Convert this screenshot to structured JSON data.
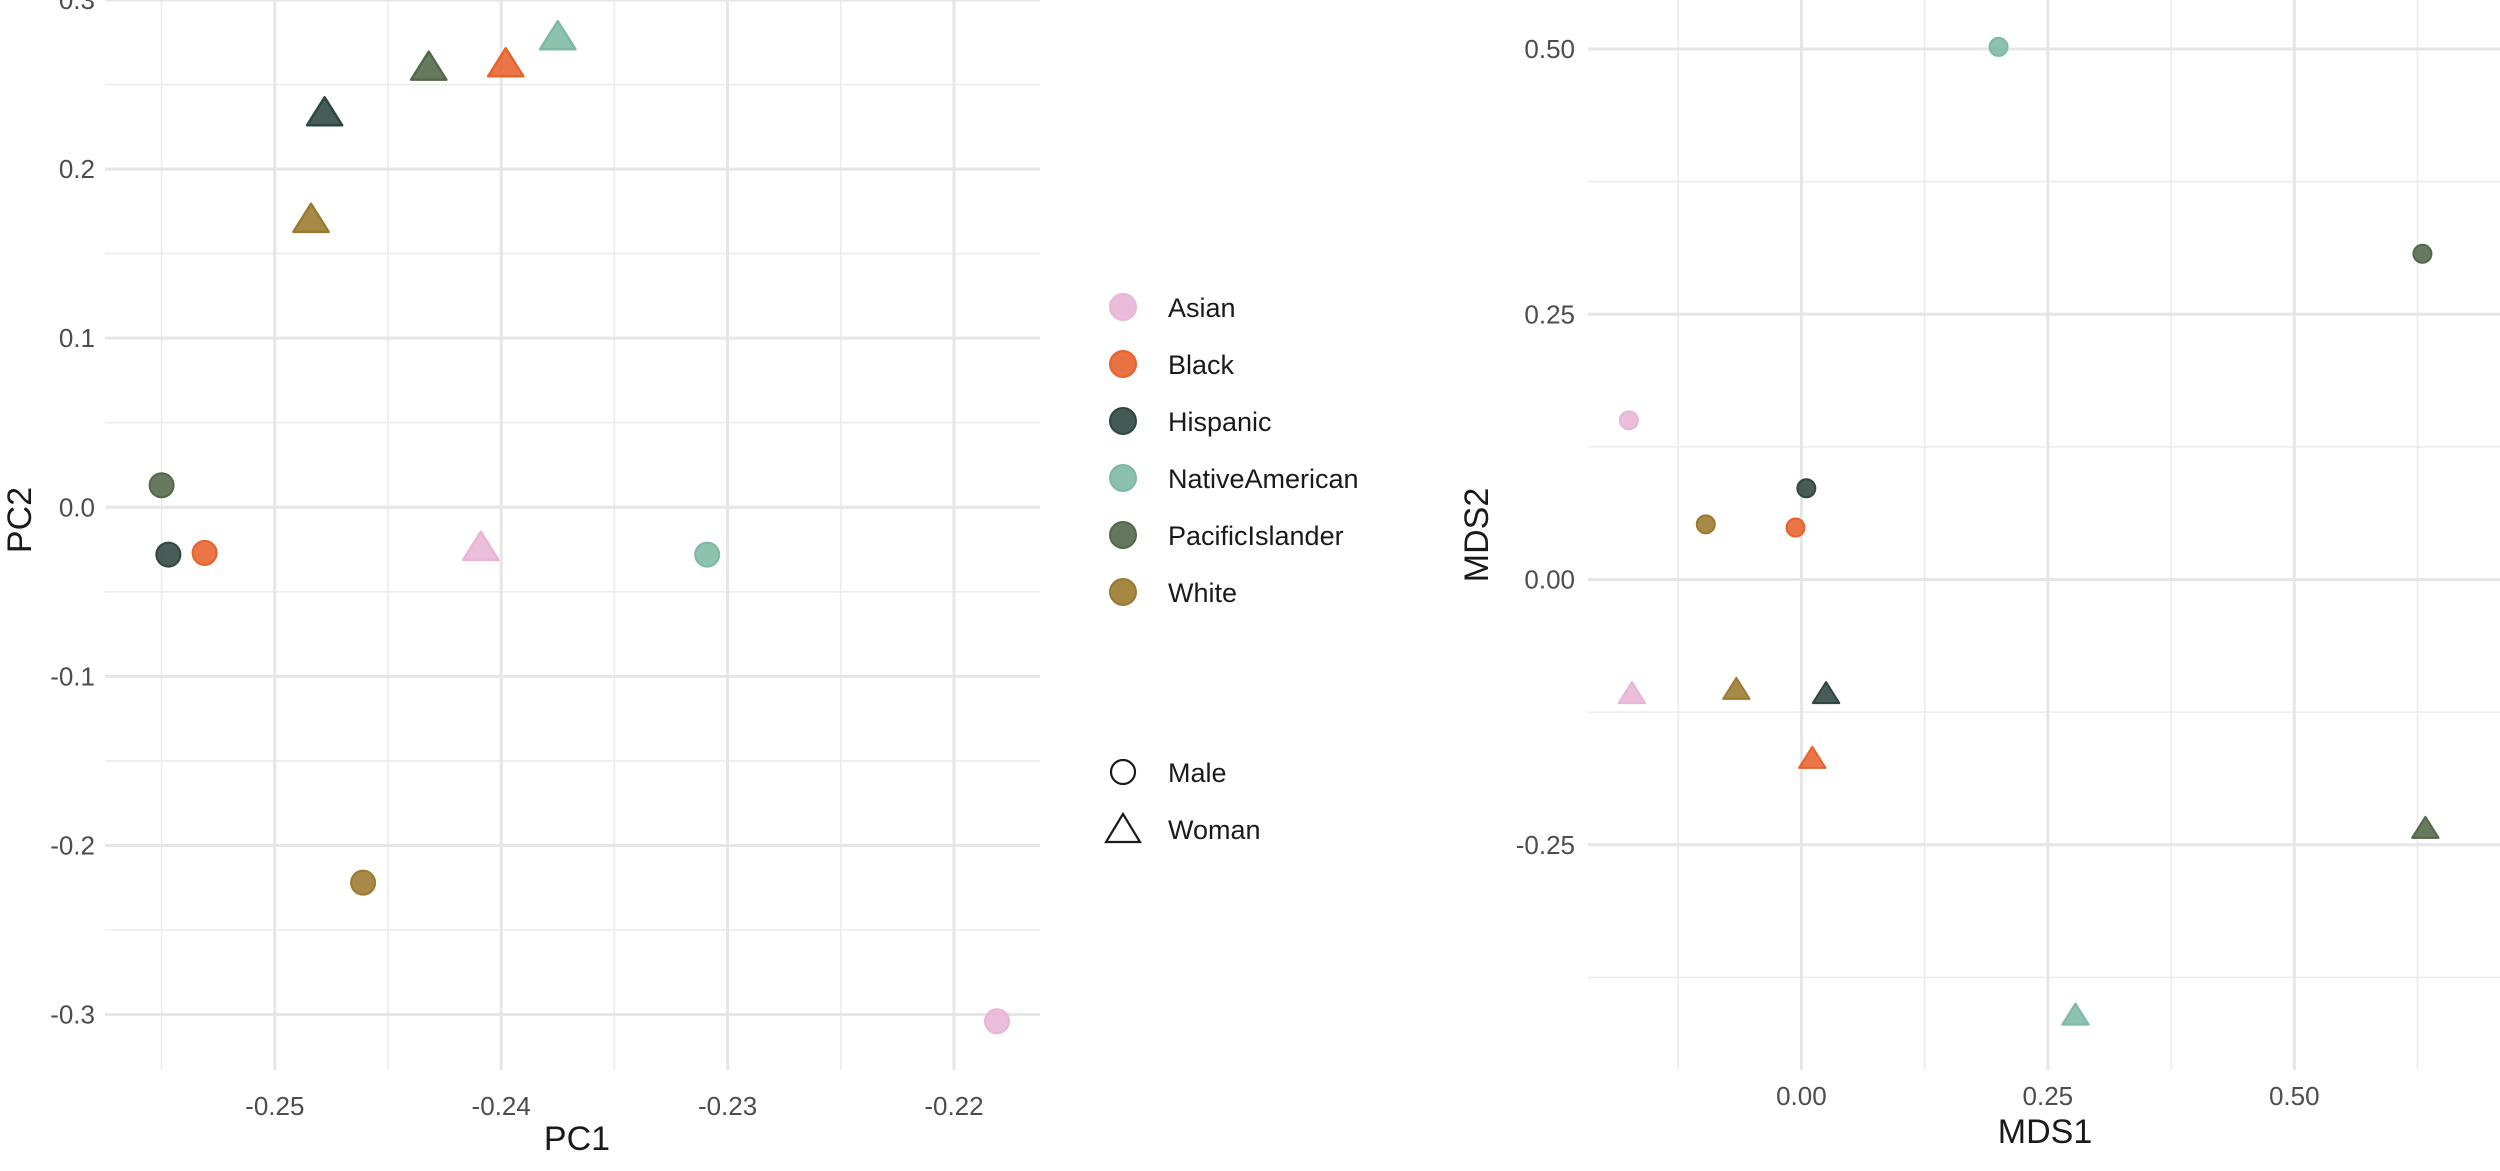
{
  "colors": {
    "Asian": "#E8B5D6",
    "Black": "#E8622C",
    "Hispanic": "#2F4740",
    "NativeAmerican": "#7DB9A4",
    "PacificIslander": "#52684A",
    "White": "#9B7A2F"
  },
  "legend": {
    "groups": [
      "Asian",
      "Black",
      "Hispanic",
      "NativeAmerican",
      "PacificIslander",
      "White"
    ],
    "shapes": [
      {
        "label": "Male",
        "shape": "circle"
      },
      {
        "label": "Woman",
        "shape": "triangle"
      }
    ]
  },
  "chart_data": [
    {
      "type": "scatter",
      "title": "",
      "xlabel": "PC1",
      "ylabel": "PC2",
      "xlim": [
        -0.2575,
        -0.2162
      ],
      "ylim": [
        -0.3328,
        0.3
      ],
      "x_ticks": [
        -0.25,
        -0.24,
        -0.23,
        -0.22
      ],
      "x_tick_labels": [
        "-0.25",
        "-0.24",
        "-0.23",
        "-0.22"
      ],
      "y_ticks": [
        0.3,
        0.2,
        0.1,
        0.0,
        -0.1,
        -0.2,
        -0.3
      ],
      "y_tick_labels": [
        "0.3",
        "0.2",
        "0.1",
        "0.0",
        "-0.1",
        "-0.2",
        "-0.3"
      ],
      "points": [
        {
          "group": "PacificIslander",
          "sex": "Male",
          "x": -0.255,
          "y": 0.013
        },
        {
          "group": "Hispanic",
          "sex": "Male",
          "x": -0.2547,
          "y": -0.028
        },
        {
          "group": "Black",
          "sex": "Male",
          "x": -0.2531,
          "y": -0.027
        },
        {
          "group": "White",
          "sex": "Male",
          "x": -0.2461,
          "y": -0.222
        },
        {
          "group": "NativeAmerican",
          "sex": "Male",
          "x": -0.2309,
          "y": -0.028
        },
        {
          "group": "Asian",
          "sex": "Male",
          "x": -0.2181,
          "y": -0.304
        },
        {
          "group": "White",
          "sex": "Woman",
          "x": -0.2484,
          "y": 0.17
        },
        {
          "group": "Hispanic",
          "sex": "Woman",
          "x": -0.2478,
          "y": 0.233
        },
        {
          "group": "PacificIslander",
          "sex": "Woman",
          "x": -0.2432,
          "y": 0.26
        },
        {
          "group": "Black",
          "sex": "Woman",
          "x": -0.2398,
          "y": 0.262
        },
        {
          "group": "NativeAmerican",
          "sex": "Woman",
          "x": -0.2375,
          "y": 0.278
        },
        {
          "group": "Asian",
          "sex": "Woman",
          "x": -0.2409,
          "y": -0.024
        }
      ]
    },
    {
      "type": "scatter",
      "title": "",
      "xlabel": "MDS1",
      "ylabel": "MDS2",
      "xlim": [
        -0.2165,
        0.7087
      ],
      "ylim": [
        -0.4623,
        0.5462
      ],
      "x_ticks": [
        0.0,
        0.25,
        0.5
      ],
      "x_tick_labels": [
        "0.00",
        "0.25",
        "0.50"
      ],
      "y_ticks": [
        0.5,
        0.25,
        0.0,
        -0.25
      ],
      "y_tick_labels": [
        "0.50",
        "0.25",
        "0.00",
        "-0.25"
      ],
      "points": [
        {
          "group": "NativeAmerican",
          "sex": "Male",
          "x": 0.2,
          "y": 0.502
        },
        {
          "group": "PacificIslander",
          "sex": "Male",
          "x": 0.63,
          "y": 0.307
        },
        {
          "group": "Asian",
          "sex": "Male",
          "x": -0.175,
          "y": 0.15
        },
        {
          "group": "Hispanic",
          "sex": "Male",
          "x": 0.005,
          "y": 0.086
        },
        {
          "group": "White",
          "sex": "Male",
          "x": -0.097,
          "y": 0.052
        },
        {
          "group": "Black",
          "sex": "Male",
          "x": -0.006,
          "y": 0.049
        },
        {
          "group": "Asian",
          "sex": "Woman",
          "x": -0.172,
          "y": -0.108
        },
        {
          "group": "White",
          "sex": "Woman",
          "x": -0.066,
          "y": -0.104
        },
        {
          "group": "Hispanic",
          "sex": "Woman",
          "x": 0.025,
          "y": -0.108
        },
        {
          "group": "Black",
          "sex": "Woman",
          "x": 0.011,
          "y": -0.169
        },
        {
          "group": "PacificIslander",
          "sex": "Woman",
          "x": 0.633,
          "y": -0.235
        },
        {
          "group": "NativeAmerican",
          "sex": "Woman",
          "x": 0.278,
          "y": -0.411
        }
      ]
    }
  ]
}
